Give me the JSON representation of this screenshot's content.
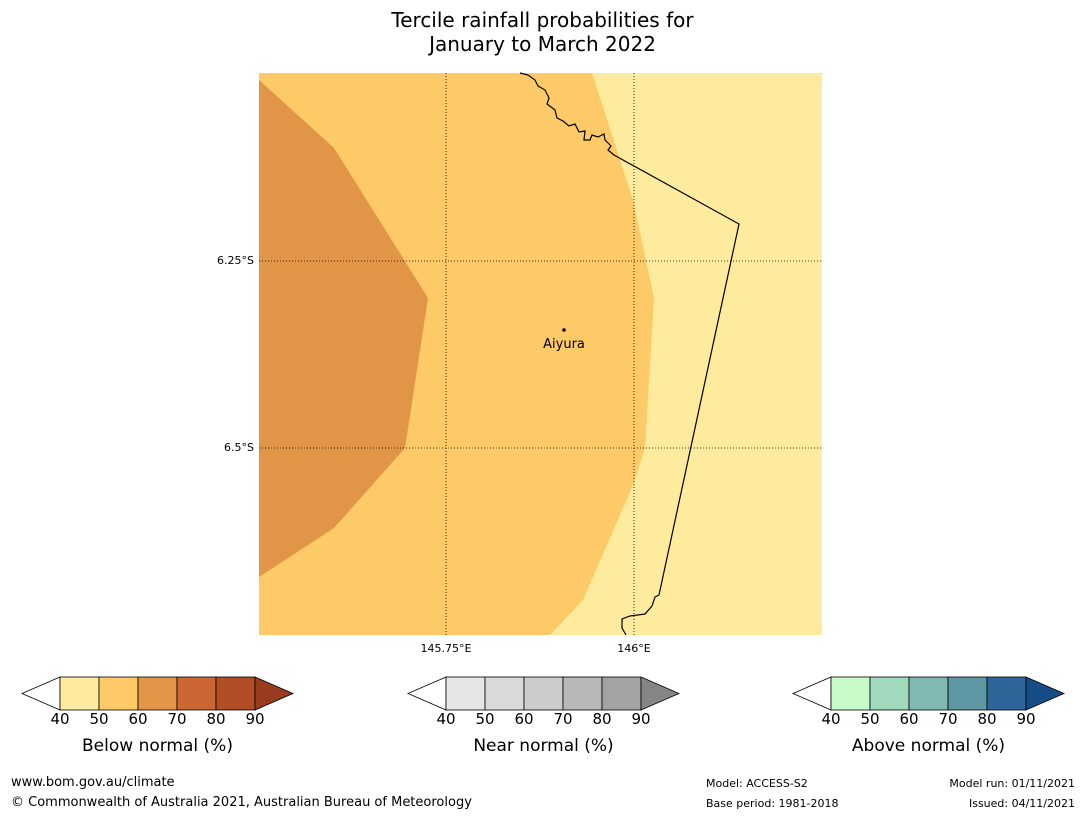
{
  "title": {
    "line1": "Tercile rainfall probabilities for",
    "line2": "January to March 2022"
  },
  "map": {
    "lat_labels": [
      "6.25°S",
      "6.5°S"
    ],
    "lon_labels": [
      "145.75°E",
      "146°E"
    ],
    "place": "Aiyura",
    "colors": {
      "p40_50": "#ffeb9e",
      "p50_60": "#fdca67",
      "p60_70": "#e09547",
      "border": "#000000"
    }
  },
  "colorbars": [
    {
      "name": "below",
      "title": "Below normal (%)",
      "ticks": [
        "40",
        "50",
        "60",
        "70",
        "80",
        "90"
      ],
      "colors": [
        "#ffffff",
        "#ffeb9e",
        "#fdca67",
        "#e09547",
        "#cc6633",
        "#b34d26",
        "#993b1f"
      ]
    },
    {
      "name": "near",
      "title": "Near normal (%)",
      "ticks": [
        "40",
        "50",
        "60",
        "70",
        "80",
        "90"
      ],
      "colors": [
        "#ffffff",
        "#e6e6e6",
        "#d9d9d9",
        "#cccccc",
        "#b8b8b8",
        "#a3a3a3",
        "#858585"
      ]
    },
    {
      "name": "above",
      "title": "Above normal (%)",
      "ticks": [
        "40",
        "50",
        "60",
        "70",
        "80",
        "90"
      ],
      "colors": [
        "#ffffff",
        "#c7fbc7",
        "#a1d9bc",
        "#80b8b2",
        "#5c97a3",
        "#2e6699",
        "#174d85"
      ]
    }
  ],
  "footer": {
    "url": "www.bom.gov.au/climate",
    "copyright": "© Commonwealth of Australia 2021, Australian Bureau of Meteorology",
    "model": "Model: ACCESS-S2",
    "base_period": "Base period: 1981-2018",
    "model_run": "Model run: 01/11/2021",
    "issued": "Issued: 04/11/2021"
  }
}
